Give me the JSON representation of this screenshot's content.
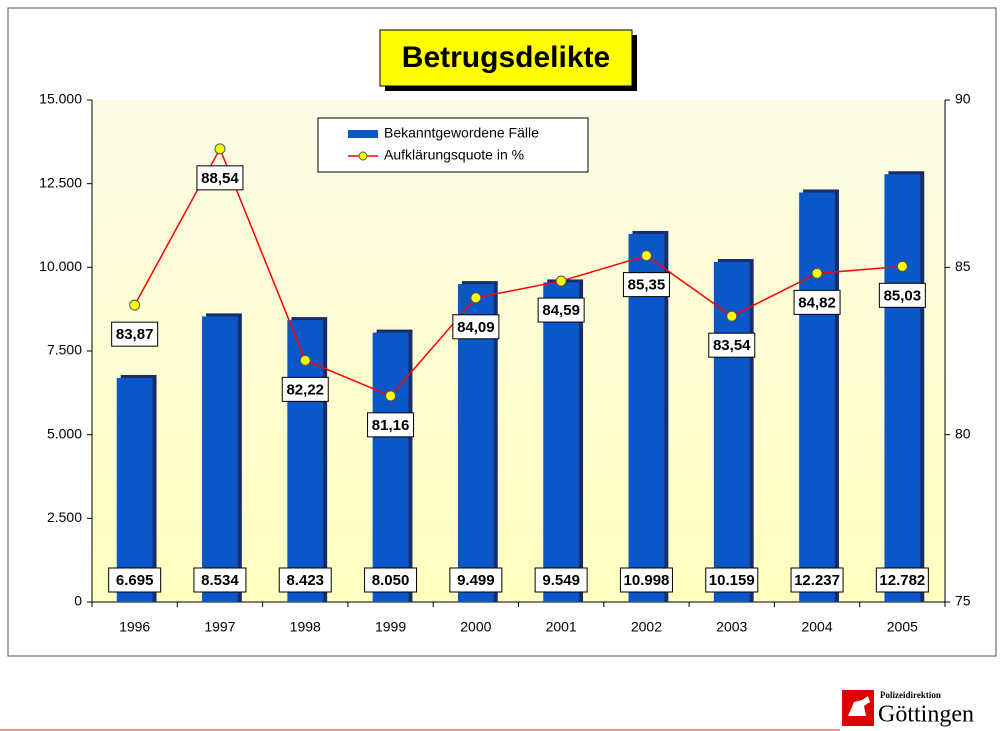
{
  "chart_data": {
    "type": "bar_line",
    "title": "Betrugsdelikte",
    "categories": [
      "1996",
      "1997",
      "1998",
      "1999",
      "2000",
      "2001",
      "2002",
      "2003",
      "2004",
      "2005"
    ],
    "series": [
      {
        "name": "Bekanntgewordene Fälle",
        "color": "#0b56c9",
        "type": "bar",
        "values": [
          6695,
          8534,
          8423,
          8050,
          9499,
          9549,
          10998,
          10159,
          12237,
          12782
        ],
        "value_labels": [
          "6.695",
          "8.534",
          "8.423",
          "8.050",
          "9.499",
          "9.549",
          "10.998",
          "10.159",
          "12.237",
          "12.782"
        ]
      },
      {
        "name": "Aufklärungsquote in %",
        "color": "#ff0000",
        "marker_color": "#ffff00",
        "type": "line",
        "axis": "y2",
        "values": [
          83.87,
          88.54,
          82.22,
          81.16,
          84.09,
          84.59,
          85.35,
          83.54,
          84.82,
          85.03
        ],
        "value_labels": [
          "83,87",
          "88,54",
          "82,22",
          "81,16",
          "84,09",
          "84,59",
          "85,35",
          "83,54",
          "84,82",
          "85,03"
        ]
      }
    ],
    "ylim": [
      0,
      15000
    ],
    "yticks": [
      0,
      {
        "value": 2500,
        "label": "2.500"
      },
      {
        "value": 5000,
        "label": "5.000"
      },
      {
        "value": 7500,
        "label": "7.500"
      },
      {
        "value": 10000,
        "label": "10.000"
      },
      {
        "value": 12500,
        "label": "12.500"
      },
      {
        "value": 15000,
        "label": "15.000"
      }
    ],
    "y2lim": [
      75,
      90
    ],
    "y2ticks": [
      75,
      80,
      85,
      90
    ],
    "grid": false,
    "legend": "top"
  },
  "footer": {
    "org": "Polizeidirektion",
    "city": "Göttingen"
  }
}
